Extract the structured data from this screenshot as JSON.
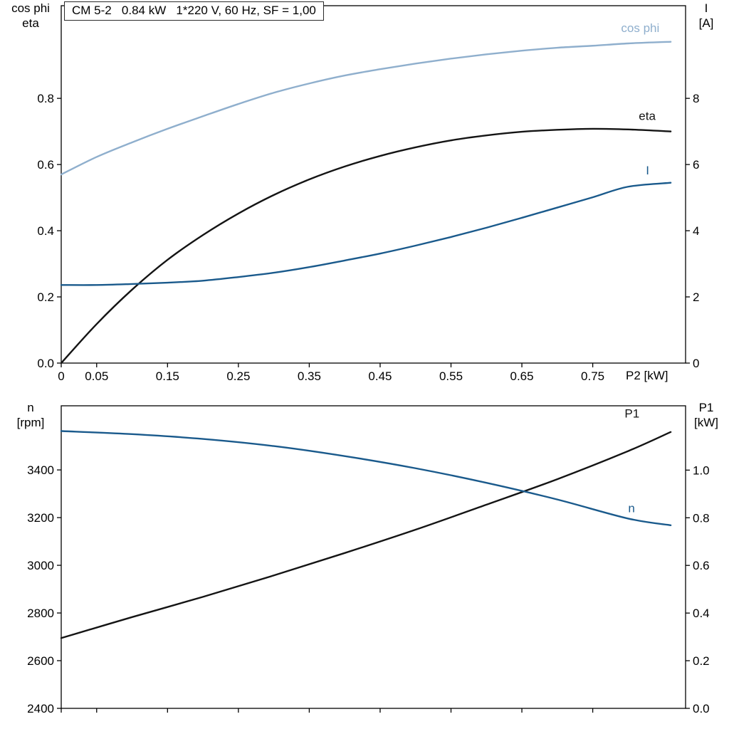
{
  "colors": {
    "cos_phi": "#8fafcd",
    "eta": "#141414",
    "current": "#1a5a8c",
    "rotation": "#1a5a8c",
    "p1": "#141414",
    "axis": "#000000",
    "text": "#000000"
  },
  "chart_data": [
    {
      "type": "line",
      "title": "CM 5-2   0.84 kW   1*220 V, 60 Hz, SF = 1,00",
      "grid": false,
      "legend_position": "inline-labels",
      "x_axis": {
        "label": "P2 [kW]",
        "range": [
          0,
          0.881
        ],
        "ticks": [
          0,
          0.05,
          0.15,
          0.25,
          0.35,
          0.45,
          0.55,
          0.65,
          0.75
        ],
        "tick_labels": [
          "0",
          "0.05",
          "0.15",
          "0.25",
          "0.35",
          "0.45",
          "0.55",
          "0.65",
          "0.75"
        ]
      },
      "y_left": {
        "label_lines": [
          "cos phi",
          "eta"
        ],
        "range": [
          0,
          1.08
        ],
        "ticks": [
          0.0,
          0.2,
          0.4,
          0.6,
          0.8
        ],
        "tick_labels": [
          "0.0",
          "0.2",
          "0.4",
          "0.6",
          "0.8"
        ]
      },
      "y_right": {
        "label_lines": [
          "I",
          "[A]"
        ],
        "range": [
          0,
          10.8
        ],
        "ticks": [
          0,
          2,
          4,
          6,
          8
        ],
        "tick_labels": [
          "0",
          "2",
          "4",
          "6",
          "8"
        ]
      },
      "series": [
        {
          "name": "cos phi",
          "axis": "left",
          "color_key": "cos_phi",
          "label_at": {
            "x": 0.79,
            "y": 1.0
          },
          "x": [
            0,
            0.05,
            0.1,
            0.15,
            0.2,
            0.25,
            0.3,
            0.35,
            0.4,
            0.45,
            0.5,
            0.55,
            0.6,
            0.65,
            0.7,
            0.75,
            0.8,
            0.86
          ],
          "values": [
            0.57,
            0.623,
            0.667,
            0.708,
            0.746,
            0.783,
            0.817,
            0.845,
            0.869,
            0.888,
            0.905,
            0.92,
            0.933,
            0.944,
            0.953,
            0.959,
            0.966,
            0.971
          ]
        },
        {
          "name": "eta",
          "axis": "left",
          "color_key": "eta",
          "label_at": {
            "x": 0.815,
            "y": 0.735
          },
          "x": [
            0,
            0.05,
            0.1,
            0.15,
            0.2,
            0.25,
            0.3,
            0.35,
            0.4,
            0.45,
            0.5,
            0.55,
            0.6,
            0.65,
            0.7,
            0.75,
            0.8,
            0.86
          ],
          "values": [
            0.0,
            0.118,
            0.222,
            0.312,
            0.387,
            0.452,
            0.508,
            0.555,
            0.594,
            0.626,
            0.652,
            0.673,
            0.688,
            0.699,
            0.705,
            0.708,
            0.706,
            0.7
          ]
        },
        {
          "name": "I",
          "axis": "right",
          "color_key": "current",
          "label_at": {
            "x": 0.825,
            "y": 5.7
          },
          "x": [
            0,
            0.05,
            0.1,
            0.15,
            0.2,
            0.25,
            0.3,
            0.35,
            0.4,
            0.45,
            0.5,
            0.55,
            0.6,
            0.65,
            0.7,
            0.75,
            0.8,
            0.86
          ],
          "values": [
            2.36,
            2.36,
            2.39,
            2.43,
            2.49,
            2.6,
            2.73,
            2.9,
            3.1,
            3.31,
            3.55,
            3.81,
            4.09,
            4.39,
            4.7,
            5.01,
            5.33,
            5.45
          ]
        }
      ]
    },
    {
      "type": "line",
      "title": "",
      "grid": false,
      "legend_position": "inline-labels",
      "x_axis": {
        "label": "",
        "range": [
          0,
          0.881
        ],
        "ticks": [
          0,
          0.05,
          0.15,
          0.25,
          0.35,
          0.45,
          0.55,
          0.65,
          0.75
        ],
        "tick_labels": [
          "",
          "",
          "",
          "",
          "",
          "",
          "",
          "",
          ""
        ]
      },
      "y_left": {
        "label_lines": [
          "n",
          "[rpm]"
        ],
        "range": [
          2400,
          3669
        ],
        "ticks": [
          2400,
          2600,
          2800,
          3000,
          3200,
          3400
        ],
        "tick_labels": [
          "2400",
          "2600",
          "2800",
          "3000",
          "3200",
          "3400"
        ]
      },
      "y_right": {
        "label_lines": [
          "P1",
          "[kW]"
        ],
        "range": [
          0,
          1.27
        ],
        "ticks": [
          0.0,
          0.2,
          0.4,
          0.6,
          0.8,
          1.0
        ],
        "tick_labels": [
          "0.0",
          "0.2",
          "0.4",
          "0.6",
          "0.8",
          "1.0"
        ]
      },
      "series": [
        {
          "name": "P1",
          "axis": "right",
          "color_key": "p1",
          "label_at": {
            "x": 0.795,
            "y": 1.22
          },
          "x": [
            0,
            0.1,
            0.2,
            0.3,
            0.4,
            0.5,
            0.6,
            0.7,
            0.8,
            0.86
          ],
          "values": [
            0.295,
            0.383,
            0.468,
            0.558,
            0.652,
            0.75,
            0.855,
            0.962,
            1.08,
            1.16
          ]
        },
        {
          "name": "n",
          "axis": "left",
          "color_key": "rotation",
          "label_at": {
            "x": 0.8,
            "y": 3222
          },
          "x": [
            0,
            0.1,
            0.2,
            0.3,
            0.4,
            0.5,
            0.6,
            0.7,
            0.8,
            0.86
          ],
          "values": [
            3563,
            3550,
            3530,
            3500,
            3458,
            3407,
            3346,
            3276,
            3196,
            3168
          ]
        }
      ]
    }
  ]
}
